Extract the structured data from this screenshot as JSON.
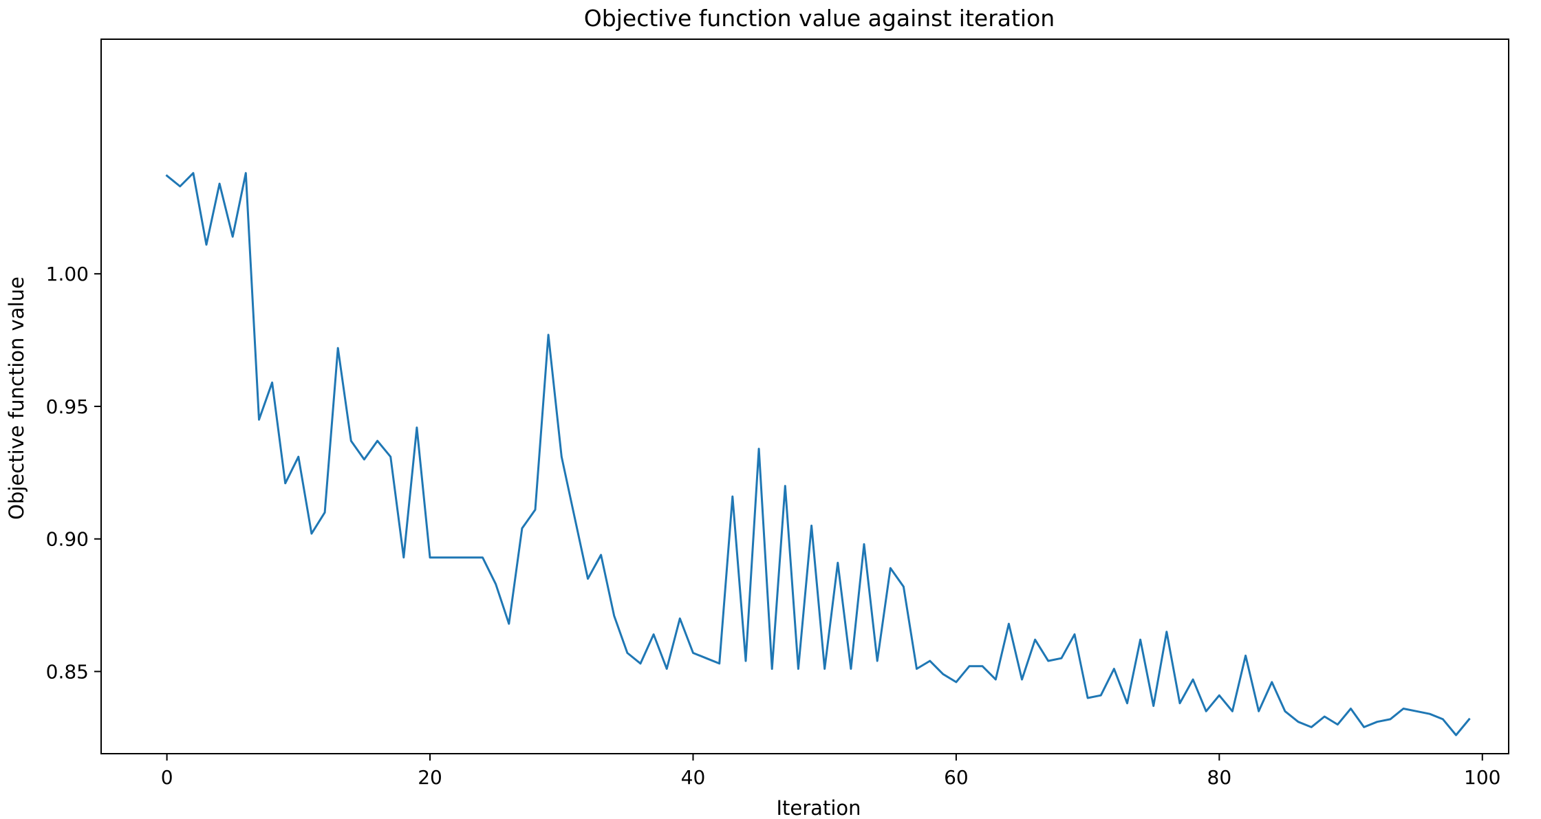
{
  "chart_data": {
    "type": "line",
    "title": "Objective function value against iteration",
    "xlabel": "Iteration",
    "ylabel": "Objective function value",
    "xlim": [
      -5,
      102
    ],
    "ylim": [
      0.819,
      1.0885
    ],
    "xticks": [
      0,
      20,
      40,
      60,
      80,
      100
    ],
    "xtick_labels": [
      "0",
      "20",
      "40",
      "60",
      "80",
      "100"
    ],
    "yticks": [
      0.85,
      0.9,
      0.95,
      1.0
    ],
    "ytick_labels": [
      "0.85",
      "0.90",
      "0.95",
      "1.00"
    ],
    "grid": false,
    "series": [
      {
        "color": "#1f77b4",
        "x": [
          0,
          1,
          2,
          3,
          4,
          5,
          6,
          7,
          8,
          9,
          10,
          11,
          12,
          13,
          14,
          15,
          16,
          17,
          18,
          19,
          20,
          21,
          22,
          23,
          24,
          25,
          26,
          27,
          28,
          29,
          30,
          31,
          32,
          33,
          34,
          35,
          36,
          37,
          38,
          39,
          40,
          41,
          42,
          43,
          44,
          45,
          46,
          47,
          48,
          49,
          50,
          51,
          52,
          53,
          54,
          55,
          56,
          57,
          58,
          59,
          60,
          61,
          62,
          63,
          64,
          65,
          66,
          67,
          68,
          69,
          70,
          71,
          72,
          73,
          74,
          75,
          76,
          77,
          78,
          79,
          80,
          81,
          82,
          83,
          84,
          85,
          86,
          87,
          88,
          89,
          90,
          91,
          92,
          93,
          94,
          95,
          96,
          97,
          98,
          99
        ],
        "y": [
          1.037,
          1.033,
          1.038,
          1.011,
          1.034,
          1.014,
          1.038,
          0.945,
          0.959,
          0.921,
          0.931,
          0.902,
          0.91,
          0.972,
          0.937,
          0.93,
          0.937,
          0.931,
          0.893,
          0.942,
          0.893,
          0.893,
          0.893,
          0.893,
          0.893,
          0.883,
          0.868,
          0.904,
          0.911,
          0.977,
          0.931,
          0.908,
          0.885,
          0.894,
          0.871,
          0.857,
          0.853,
          0.864,
          0.851,
          0.87,
          0.857,
          0.855,
          0.853,
          0.916,
          0.854,
          0.934,
          0.851,
          0.92,
          0.851,
          0.905,
          0.851,
          0.891,
          0.851,
          0.898,
          0.854,
          0.889,
          0.882,
          0.851,
          0.854,
          0.849,
          0.846,
          0.852,
          0.852,
          0.847,
          0.868,
          0.847,
          0.862,
          0.854,
          0.855,
          0.864,
          0.84,
          0.841,
          0.851,
          0.838,
          0.862,
          0.837,
          0.865,
          0.838,
          0.847,
          0.835,
          0.841,
          0.835,
          0.856,
          0.835,
          0.846,
          0.835,
          0.831,
          0.829,
          0.833,
          0.83,
          0.836,
          0.829,
          0.831,
          0.832,
          0.836,
          0.835,
          0.834,
          0.832,
          0.826,
          0.832
        ]
      }
    ]
  }
}
